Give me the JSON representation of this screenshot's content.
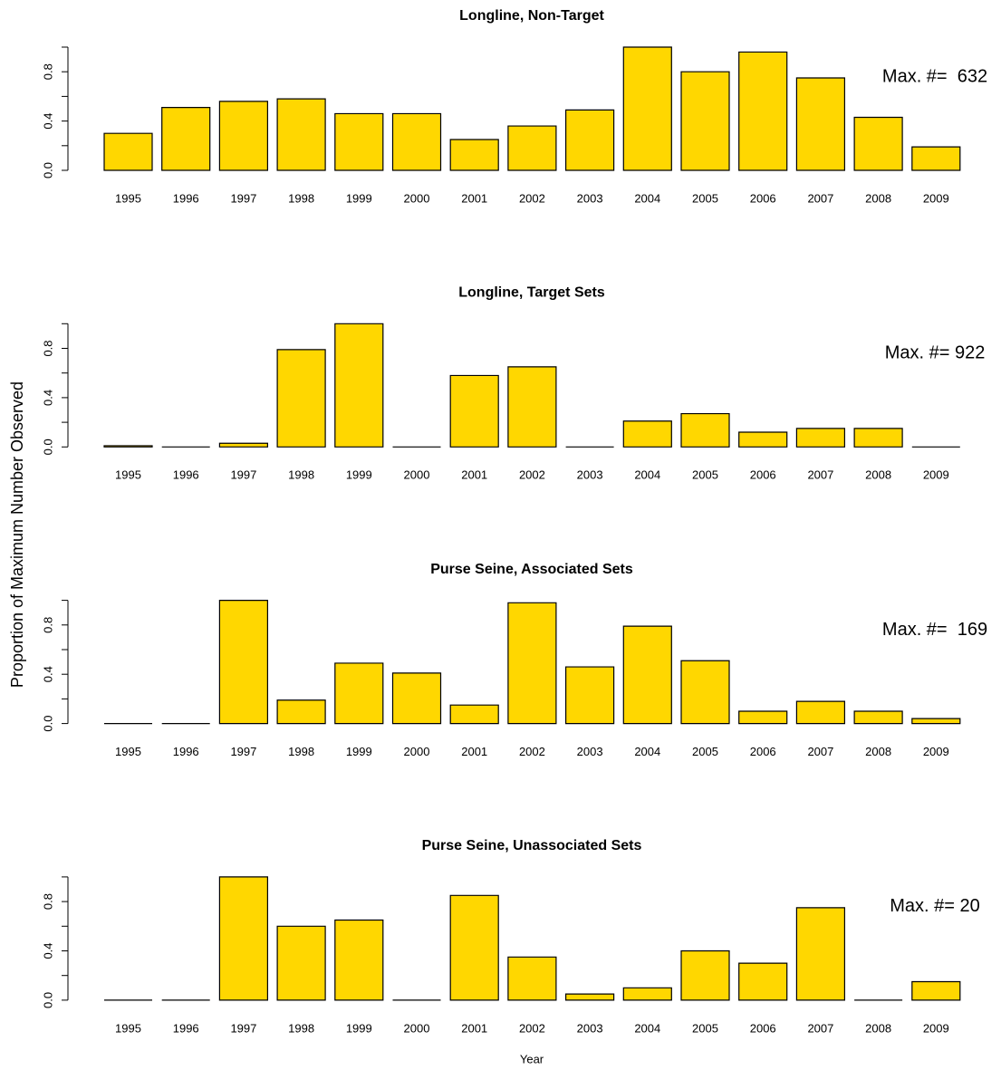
{
  "ylabel": "Proportion of Maximum Number Observed",
  "xlabel": "Year",
  "chart_data": [
    {
      "type": "bar",
      "title": "Longline, Non-Target",
      "annotation": "Max. #=  632",
      "categories": [
        "1995",
        "1996",
        "1997",
        "1998",
        "1999",
        "2000",
        "2001",
        "2002",
        "2003",
        "2004",
        "2005",
        "2006",
        "2007",
        "2008",
        "2009"
      ],
      "values": [
        0.3,
        0.51,
        0.56,
        0.58,
        0.46,
        0.46,
        0.25,
        0.36,
        0.49,
        1.0,
        0.8,
        0.96,
        0.75,
        0.43,
        0.19
      ],
      "color": "#ffd700",
      "ylim": [
        0,
        1
      ],
      "yticks": [
        {
          "value": 0,
          "label": "0.0"
        },
        0.4,
        0.8
      ],
      "yminorticks": [
        0.2,
        0.6,
        1.0
      ]
    },
    {
      "type": "bar",
      "title": "Longline, Target Sets",
      "annotation": "Max. #= 922",
      "categories": [
        "1995",
        "1996",
        "1997",
        "1998",
        "1999",
        "2000",
        "2001",
        "2002",
        "2003",
        "2004",
        "2005",
        "2006",
        "2007",
        "2008",
        "2009"
      ],
      "values": [
        0.01,
        0,
        0.03,
        0.79,
        1.0,
        0,
        0.58,
        0.65,
        0,
        0.21,
        0.27,
        0.12,
        0.15,
        0.15,
        0
      ],
      "color": "#ffd700",
      "ylim": [
        0,
        1
      ],
      "yticks": [
        {
          "value": 0,
          "label": "0.0"
        },
        0.4,
        0.8
      ],
      "yminorticks": [
        0.2,
        0.6,
        1.0
      ]
    },
    {
      "type": "bar",
      "title": "Purse Seine, Associated Sets",
      "annotation": "Max. #=  169",
      "categories": [
        "1995",
        "1996",
        "1997",
        "1998",
        "1999",
        "2000",
        "2001",
        "2002",
        "2003",
        "2004",
        "2005",
        "2006",
        "2007",
        "2008",
        "2009"
      ],
      "values": [
        0,
        0,
        1.0,
        0.19,
        0.49,
        0.41,
        0.15,
        0.98,
        0.46,
        0.79,
        0.51,
        0.1,
        0.18,
        0.1,
        0.04
      ],
      "color": "#ffd700",
      "ylim": [
        0,
        1
      ],
      "yticks": [
        {
          "value": 0,
          "label": "0.0"
        },
        0.4,
        0.8
      ],
      "yminorticks": [
        0.2,
        0.6,
        1.0
      ]
    },
    {
      "type": "bar",
      "title": "Purse Seine, Unassociated Sets",
      "annotation": "Max. #= 20",
      "categories": [
        "1995",
        "1996",
        "1997",
        "1998",
        "1999",
        "2000",
        "2001",
        "2002",
        "2003",
        "2004",
        "2005",
        "2006",
        "2007",
        "2008",
        "2009"
      ],
      "values": [
        0,
        0,
        1.0,
        0.6,
        0.65,
        0,
        0.85,
        0.35,
        0.05,
        0.1,
        0.4,
        0.3,
        0.75,
        0,
        0.15
      ],
      "color": "#ffd700",
      "ylim": [
        0,
        1
      ],
      "yticks": [
        {
          "value": 0,
          "label": "0.0"
        },
        0.4,
        0.8
      ],
      "yminorticks": [
        0.2,
        0.6,
        1.0
      ]
    }
  ]
}
